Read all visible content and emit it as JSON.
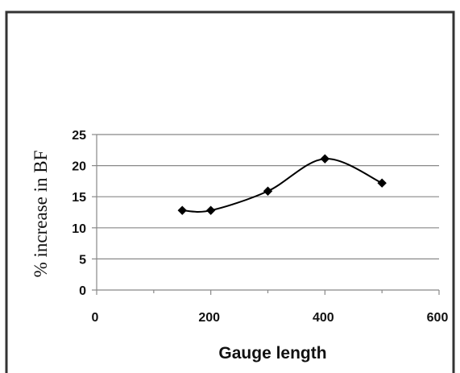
{
  "chart_data": {
    "type": "line",
    "title": "",
    "xlabel": "Gauge length",
    "ylabel": "% increase in BF",
    "xlim": [
      0,
      600
    ],
    "ylim": [
      0,
      25
    ],
    "xticks": [
      0,
      200,
      400,
      600
    ],
    "yticks": [
      0,
      5,
      10,
      15,
      20,
      25
    ],
    "grid": "horizontal",
    "legend": "none",
    "series": [
      {
        "x": [
          150,
          200,
          300,
          400,
          500
        ],
        "y": [
          12.8,
          12.8,
          15.9,
          21.1,
          17.2
        ],
        "color": "#000000",
        "marker": "diamond",
        "smooth": true
      }
    ]
  }
}
